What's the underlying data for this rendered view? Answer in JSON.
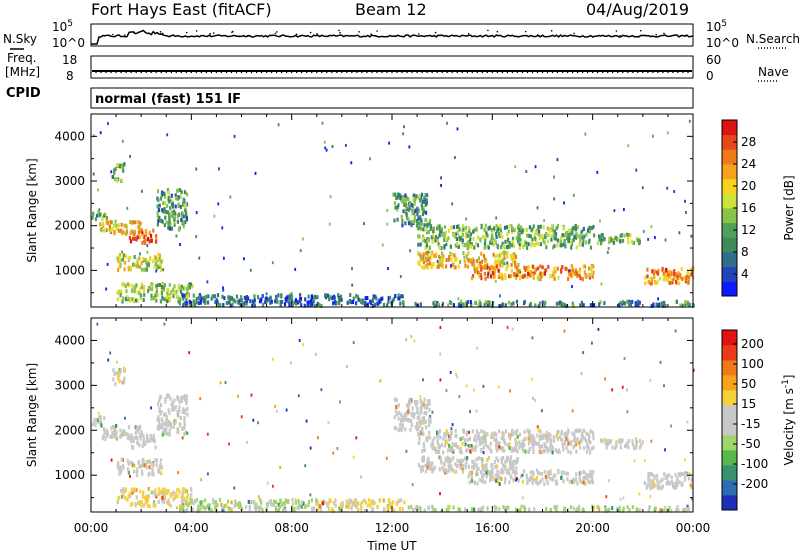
{
  "header": {
    "station": "Fort Hays East (fitACF)",
    "beam": "Beam 12",
    "date": "04/Aug/2019"
  },
  "top_panels": {
    "nsky_label": "N.Sky",
    "nsky_ticks": [
      "10^5",
      "10^0"
    ],
    "nsearch_label": "N.Search",
    "nsearch_ticks": [
      "10^5",
      "10^0"
    ],
    "freq_label_1": "Freq.",
    "freq_label_2": "[MHz]",
    "freq_ticks": [
      "18",
      "8"
    ],
    "nave_label": "Nave",
    "nave_ticks": [
      "60",
      "0"
    ],
    "cpid_label": "CPID",
    "cpid_text": "normal (fast) 151 IF"
  },
  "chart_data": [
    {
      "type": "heatmap",
      "name": "power",
      "ylabel": "Slant Range [km]",
      "xlabel": "Time UT",
      "ylim": [
        180,
        4500
      ],
      "yticks": [
        "4000",
        "3000",
        "2000",
        "1000"
      ],
      "xticks": [
        "00:00",
        "04:00",
        "08:00",
        "12:00",
        "16:00",
        "20:00",
        "00:00"
      ],
      "xlim_hours": [
        0,
        24
      ],
      "colorbar": {
        "label": "Power [dB]",
        "ticks": [
          "28",
          "24",
          "20",
          "16",
          "12",
          "8",
          "4"
        ],
        "colors": [
          "#0b1aff",
          "#2344b8",
          "#2f6f8e",
          "#3f8a5c",
          "#4fa05a",
          "#8bc34a",
          "#cde23a",
          "#f6d41a",
          "#f5a21c",
          "#f07a1a",
          "#e8471a",
          "#e01212"
        ]
      },
      "regions": [
        {
          "t": [
            0.0,
            0.6
          ],
          "r": [
            2100,
            2300
          ],
          "v": 12
        },
        {
          "t": [
            0.3,
            2.0
          ],
          "r": [
            1800,
            2100
          ],
          "v": 18
        },
        {
          "t": [
            1.5,
            2.6
          ],
          "r": [
            1600,
            1900
          ],
          "v": 26
        },
        {
          "t": [
            2.6,
            3.8
          ],
          "r": [
            1900,
            2800
          ],
          "v": 10
        },
        {
          "t": [
            0.8,
            1.3
          ],
          "r": [
            3000,
            3400
          ],
          "v": 12
        },
        {
          "t": [
            1.0,
            2.8
          ],
          "r": [
            1000,
            1350
          ],
          "v": 16
        },
        {
          "t": [
            1.0,
            4.0
          ],
          "r": [
            300,
            700
          ],
          "v": 14
        },
        {
          "t": [
            3.5,
            12.5
          ],
          "r": [
            200,
            450
          ],
          "v": 6
        },
        {
          "t": [
            12.0,
            13.5
          ],
          "r": [
            2000,
            2700
          ],
          "v": 10
        },
        {
          "t": [
            13.0,
            20.0
          ],
          "r": [
            1500,
            2000
          ],
          "v": 12
        },
        {
          "t": [
            13.0,
            17.0
          ],
          "r": [
            1050,
            1400
          ],
          "v": 19
        },
        {
          "t": [
            15.0,
            20.0
          ],
          "r": [
            800,
            1100
          ],
          "v": 22
        },
        {
          "t": [
            20.0,
            22.0
          ],
          "r": [
            1600,
            1800
          ],
          "v": 12
        },
        {
          "t": [
            22.0,
            24.0
          ],
          "r": [
            700,
            1050
          ],
          "v": 22
        },
        {
          "t": [
            12.5,
            24.0
          ],
          "r": [
            200,
            300
          ],
          "v": 8
        }
      ]
    },
    {
      "type": "heatmap",
      "name": "velocity",
      "ylabel": "Slant Range [km]",
      "xlabel": "Time UT",
      "ylim": [
        180,
        4500
      ],
      "yticks": [
        "4000",
        "3000",
        "2000",
        "1000"
      ],
      "xticks": [
        "00:00",
        "04:00",
        "08:00",
        "12:00",
        "16:00",
        "20:00",
        "00:00"
      ],
      "xlim_hours": [
        0,
        24
      ],
      "colorbar": {
        "label": "Velocity [m s^-1]",
        "ticks": [
          "200",
          "100",
          "50",
          "15",
          "-15",
          "-50",
          "-100",
          "-200"
        ],
        "colors": [
          "#1c2fb8",
          "#2f6bb0",
          "#37936e",
          "#58b84a",
          "#9fd56a",
          "#c8c8c8",
          "#c8c8c8",
          "#f5d23a",
          "#f6a21c",
          "#f07a1a",
          "#ea3a1a",
          "#e01212"
        ]
      },
      "regions": [
        {
          "t": [
            0.0,
            0.6
          ],
          "r": [
            2100,
            2300
          ],
          "v": 0
        },
        {
          "t": [
            0.3,
            2.0
          ],
          "r": [
            1800,
            2100
          ],
          "v": 0
        },
        {
          "t": [
            1.5,
            2.6
          ],
          "r": [
            1600,
            1900
          ],
          "v": 0
        },
        {
          "t": [
            2.6,
            3.8
          ],
          "r": [
            1900,
            2800
          ],
          "v": -10
        },
        {
          "t": [
            0.8,
            1.3
          ],
          "r": [
            3000,
            3400
          ],
          "v": -30
        },
        {
          "t": [
            1.0,
            2.8
          ],
          "r": [
            1000,
            1350
          ],
          "v": 0
        },
        {
          "t": [
            1.0,
            4.0
          ],
          "r": [
            300,
            700
          ],
          "v": -40
        },
        {
          "t": [
            3.5,
            9.0
          ],
          "r": [
            200,
            450
          ],
          "v": 40
        },
        {
          "t": [
            9.0,
            12.5
          ],
          "r": [
            200,
            450
          ],
          "v": -40
        },
        {
          "t": [
            12.0,
            13.5
          ],
          "r": [
            2000,
            2700
          ],
          "v": 0
        },
        {
          "t": [
            13.0,
            20.0
          ],
          "r": [
            1500,
            2000
          ],
          "v": 0
        },
        {
          "t": [
            13.0,
            17.0
          ],
          "r": [
            1050,
            1400
          ],
          "v": 0
        },
        {
          "t": [
            15.0,
            20.0
          ],
          "r": [
            800,
            1100
          ],
          "v": 0
        },
        {
          "t": [
            20.0,
            22.0
          ],
          "r": [
            1600,
            1800
          ],
          "v": 0
        },
        {
          "t": [
            22.0,
            24.0
          ],
          "r": [
            700,
            1050
          ],
          "v": 0
        },
        {
          "t": [
            12.5,
            24.0
          ],
          "r": [
            200,
            300
          ],
          "v": 40
        }
      ]
    }
  ]
}
